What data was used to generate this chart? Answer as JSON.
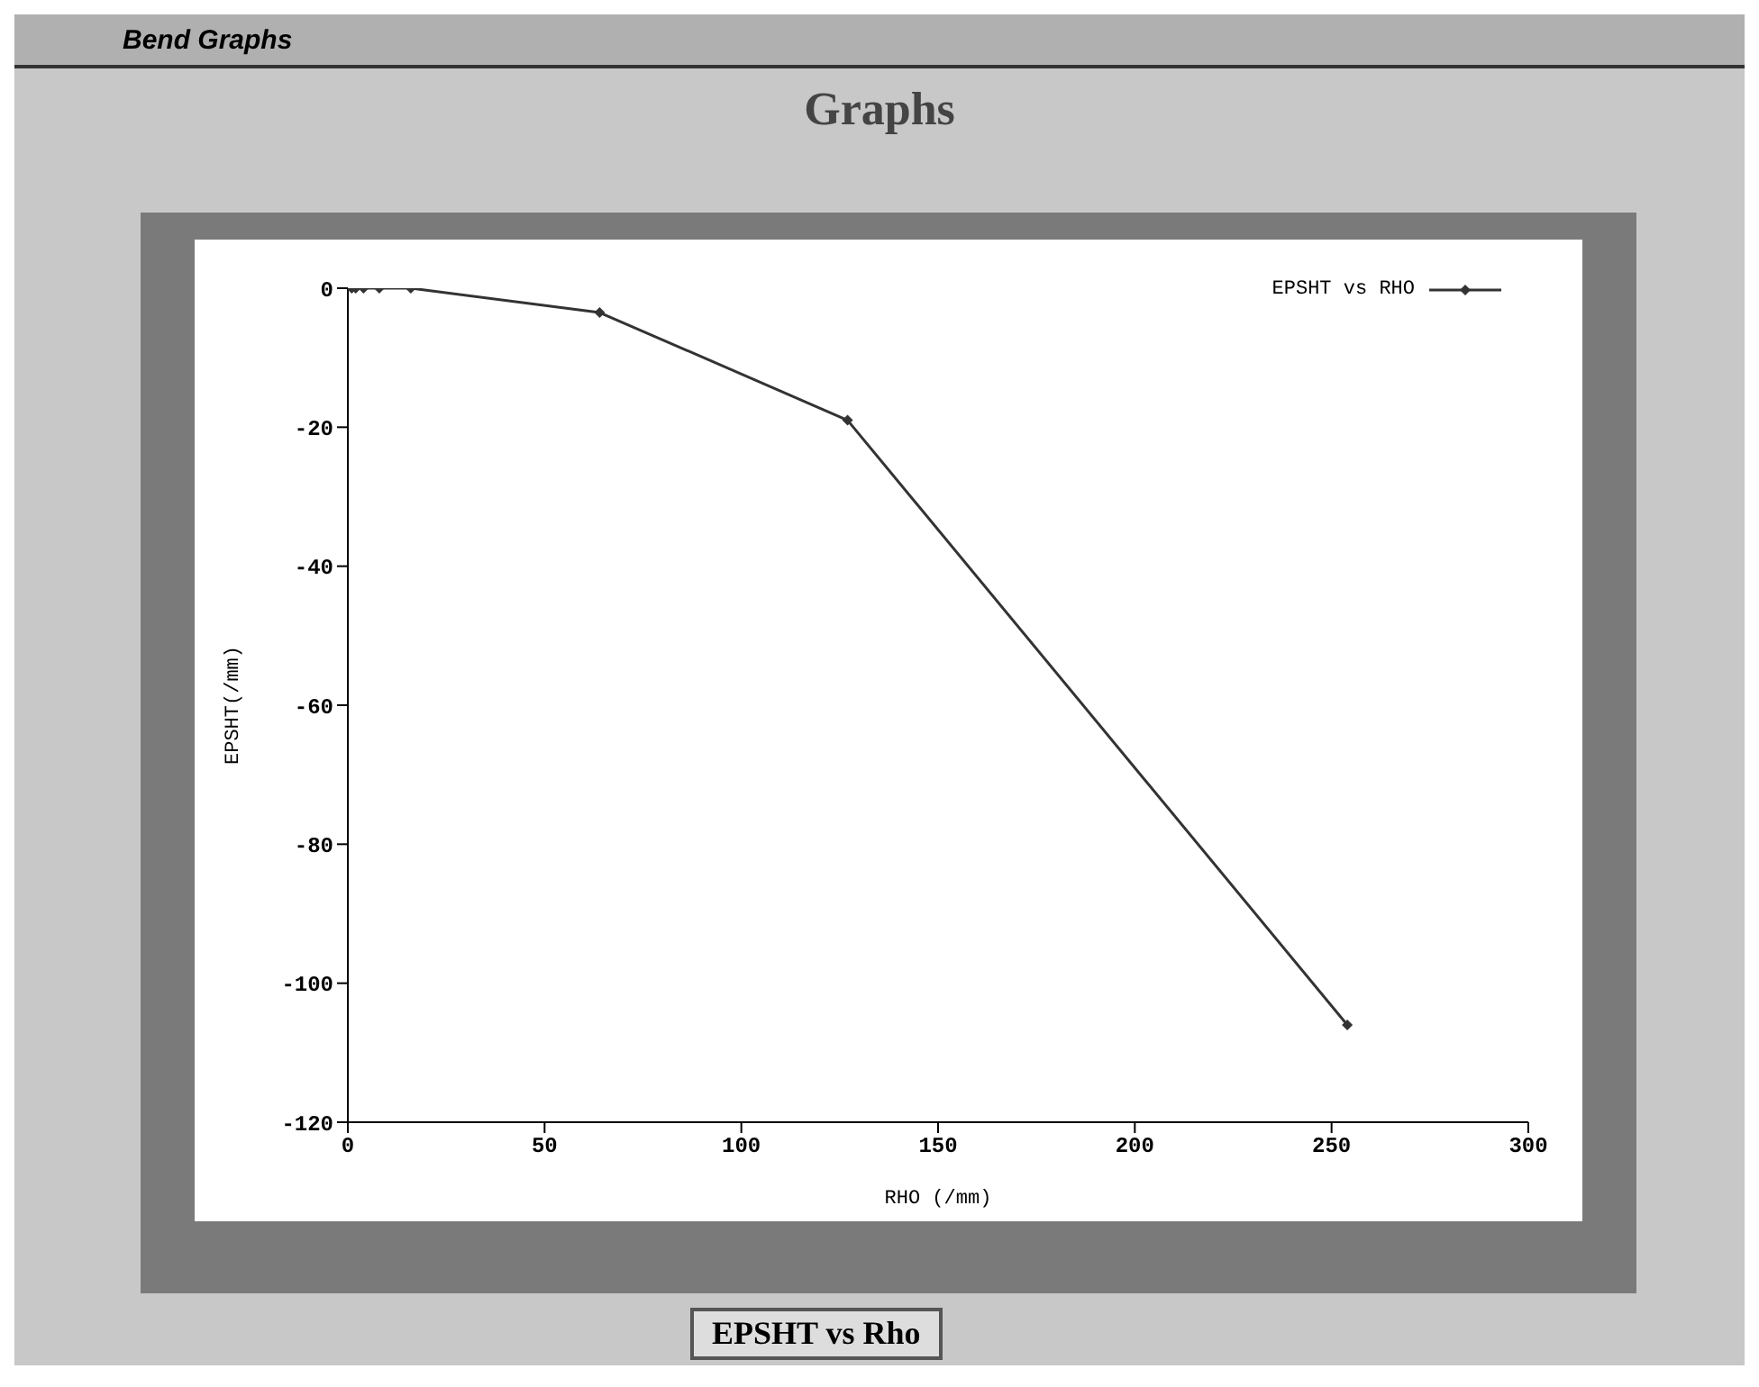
{
  "chart_data": {
    "type": "line",
    "title": "Graphs",
    "xlabel": "RHO (/mm)",
    "ylabel": "EPSHT(/mm)",
    "annotations": [
      "Bend Graphs",
      "EPSHT vs Rho"
    ],
    "x": [
      1,
      2,
      4,
      8,
      16,
      64,
      127,
      254
    ],
    "series": [
      {
        "name": "EPSHT vs RHO",
        "color": "#333333",
        "values": [
          0,
          0,
          0,
          0,
          0,
          -3.5,
          -19,
          -106
        ]
      }
    ],
    "xlim": [
      0,
      300
    ],
    "xticks": [
      0,
      50,
      100,
      150,
      200,
      250,
      300
    ],
    "ylim": [
      -120,
      0
    ],
    "yticks": [
      -120,
      -100,
      -80,
      -60,
      -40,
      -20,
      0
    ],
    "grid": false,
    "legend": "top right",
    "marker": "diamond",
    "line_style": "solid"
  }
}
